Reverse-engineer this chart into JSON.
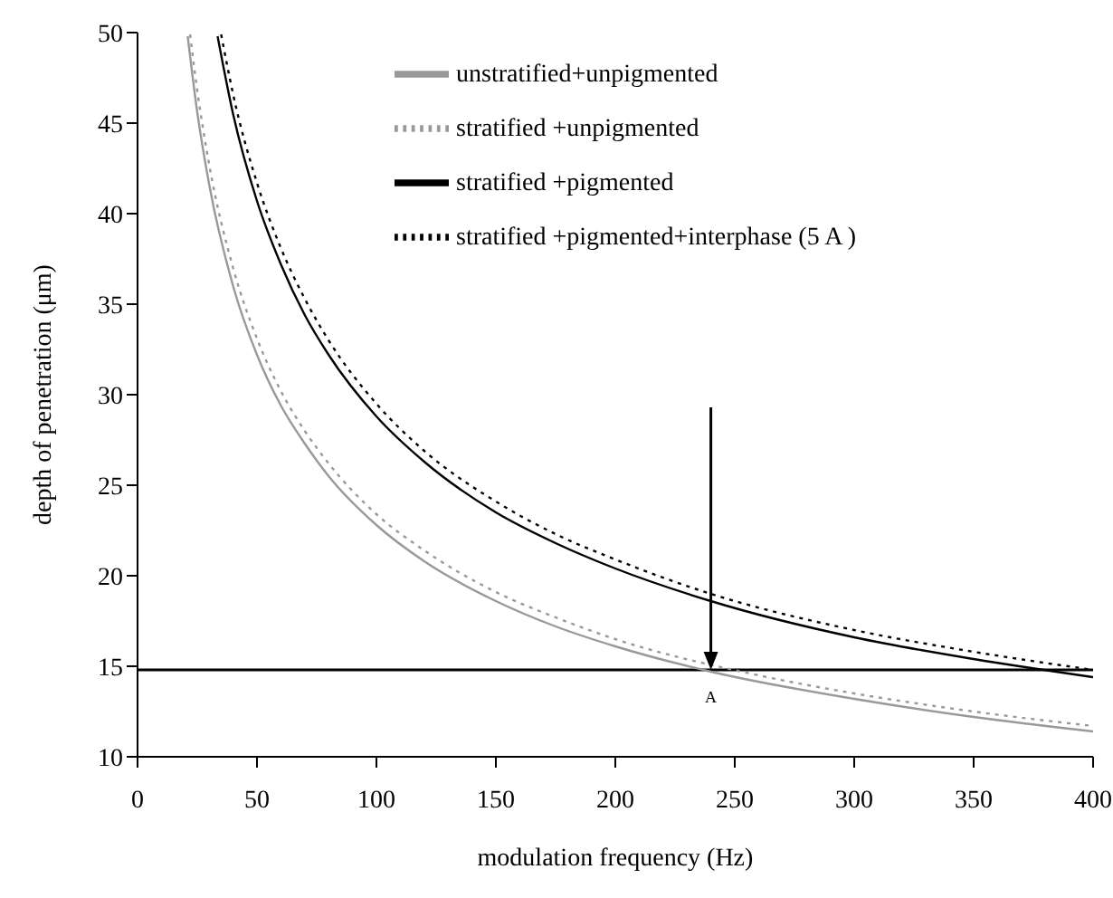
{
  "chart_data": {
    "type": "line",
    "xlabel": "modulation frequency (Hz)",
    "ylabel": "depth of penetration (μm)",
    "xlim": [
      0,
      400
    ],
    "xticks": [
      0,
      50,
      100,
      150,
      200,
      250,
      300,
      350,
      400
    ],
    "ylim": [
      10,
      50
    ],
    "yticks": [
      10,
      15,
      20,
      25,
      30,
      35,
      40,
      45,
      50
    ],
    "grid": false,
    "legend": "top right",
    "marker": "none",
    "series": [
      {
        "name": "unstratified+unpigmented",
        "color": "#999999",
        "line_style": "solid",
        "x": [
          21,
          25,
          30,
          40,
          50,
          60,
          70,
          80,
          100,
          120,
          150,
          175,
          200,
          240,
          300,
          350,
          400
        ],
        "values": [
          49.8,
          45.6,
          41.6,
          36.0,
          32.2,
          29.4,
          27.3,
          25.5,
          22.8,
          20.8,
          18.6,
          17.2,
          16.1,
          14.7,
          13.2,
          12.2,
          11.4
        ]
      },
      {
        "name": "stratified +unpigmented",
        "color": "#999999",
        "line_style": "dotted",
        "x": [
          22,
          25,
          30,
          40,
          50,
          60,
          70,
          80,
          100,
          120,
          150,
          175,
          200,
          260,
          300,
          350,
          400
        ],
        "values": [
          49.9,
          46.8,
          42.7,
          37.0,
          33.1,
          30.2,
          28.0,
          26.2,
          23.4,
          21.4,
          19.1,
          17.7,
          16.5,
          14.5,
          13.5,
          12.5,
          11.7
        ]
      },
      {
        "name": "stratified +pigmented",
        "color": "#000000",
        "line_style": "solid",
        "x": [
          33.5,
          40,
          50,
          60,
          70,
          80,
          100,
          120,
          150,
          175,
          200,
          240,
          300,
          350,
          400
        ],
        "values": [
          49.8,
          45.5,
          40.7,
          37.2,
          34.4,
          32.2,
          28.8,
          26.3,
          23.5,
          21.8,
          20.4,
          18.6,
          16.6,
          15.4,
          14.4
        ]
      },
      {
        "name": "stratified +pigmented+interphase (5 A )",
        "color": "#000000",
        "line_style": "dotted",
        "x": [
          35,
          40,
          50,
          60,
          70,
          80,
          100,
          120,
          150,
          175,
          200,
          240,
          300,
          350,
          400
        ],
        "values": [
          49.9,
          46.6,
          41.7,
          38.1,
          35.3,
          33.0,
          29.5,
          26.9,
          24.1,
          22.3,
          20.9,
          19.0,
          17.0,
          15.8,
          14.8
        ]
      }
    ],
    "ref_lines": [
      {
        "axis": "y",
        "value": 14.8,
        "color": "#000000"
      }
    ],
    "annotations": [
      {
        "text": "A",
        "x": 240,
        "y": 14.8
      }
    ]
  }
}
